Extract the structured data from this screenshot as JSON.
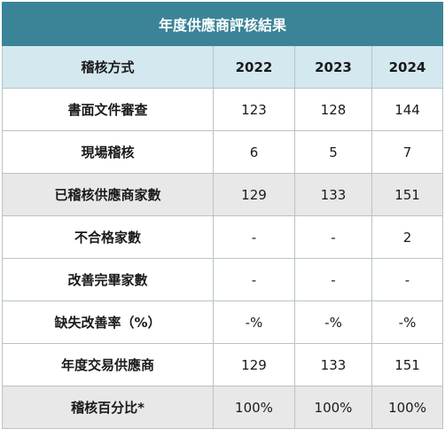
{
  "table": {
    "title": "年度供應商評核結果",
    "header": {
      "method_label": "稽核方式",
      "years": [
        "2022",
        "2023",
        "2024"
      ]
    },
    "rows": [
      {
        "label": "書面文件審查",
        "values": [
          "123",
          "128",
          "144"
        ],
        "shaded": false
      },
      {
        "label": "現場稽核",
        "values": [
          "6",
          "5",
          "7"
        ],
        "shaded": false
      },
      {
        "label": "已稽核供應商家數",
        "values": [
          "129",
          "133",
          "151"
        ],
        "shaded": true
      },
      {
        "label": "不合格家數",
        "values": [
          "-",
          "-",
          "2"
        ],
        "shaded": false
      },
      {
        "label": "改善完畢家數",
        "values": [
          "-",
          "-",
          "-"
        ],
        "shaded": false
      },
      {
        "label": "缺失改善率（%）",
        "values": [
          "-%",
          "-%",
          "-%"
        ],
        "shaded": false
      },
      {
        "label": "年度交易供應商",
        "values": [
          "129",
          "133",
          "151"
        ],
        "shaded": false
      },
      {
        "label": "稽核百分比*",
        "values": [
          "100%",
          "100%",
          "100%"
        ],
        "shaded": true
      }
    ]
  },
  "colors": {
    "title_bg": "#3b8497",
    "header_bg": "#d3e8ef",
    "shaded_row_bg": "#e8e8e8",
    "border": "#b9c3c8"
  }
}
